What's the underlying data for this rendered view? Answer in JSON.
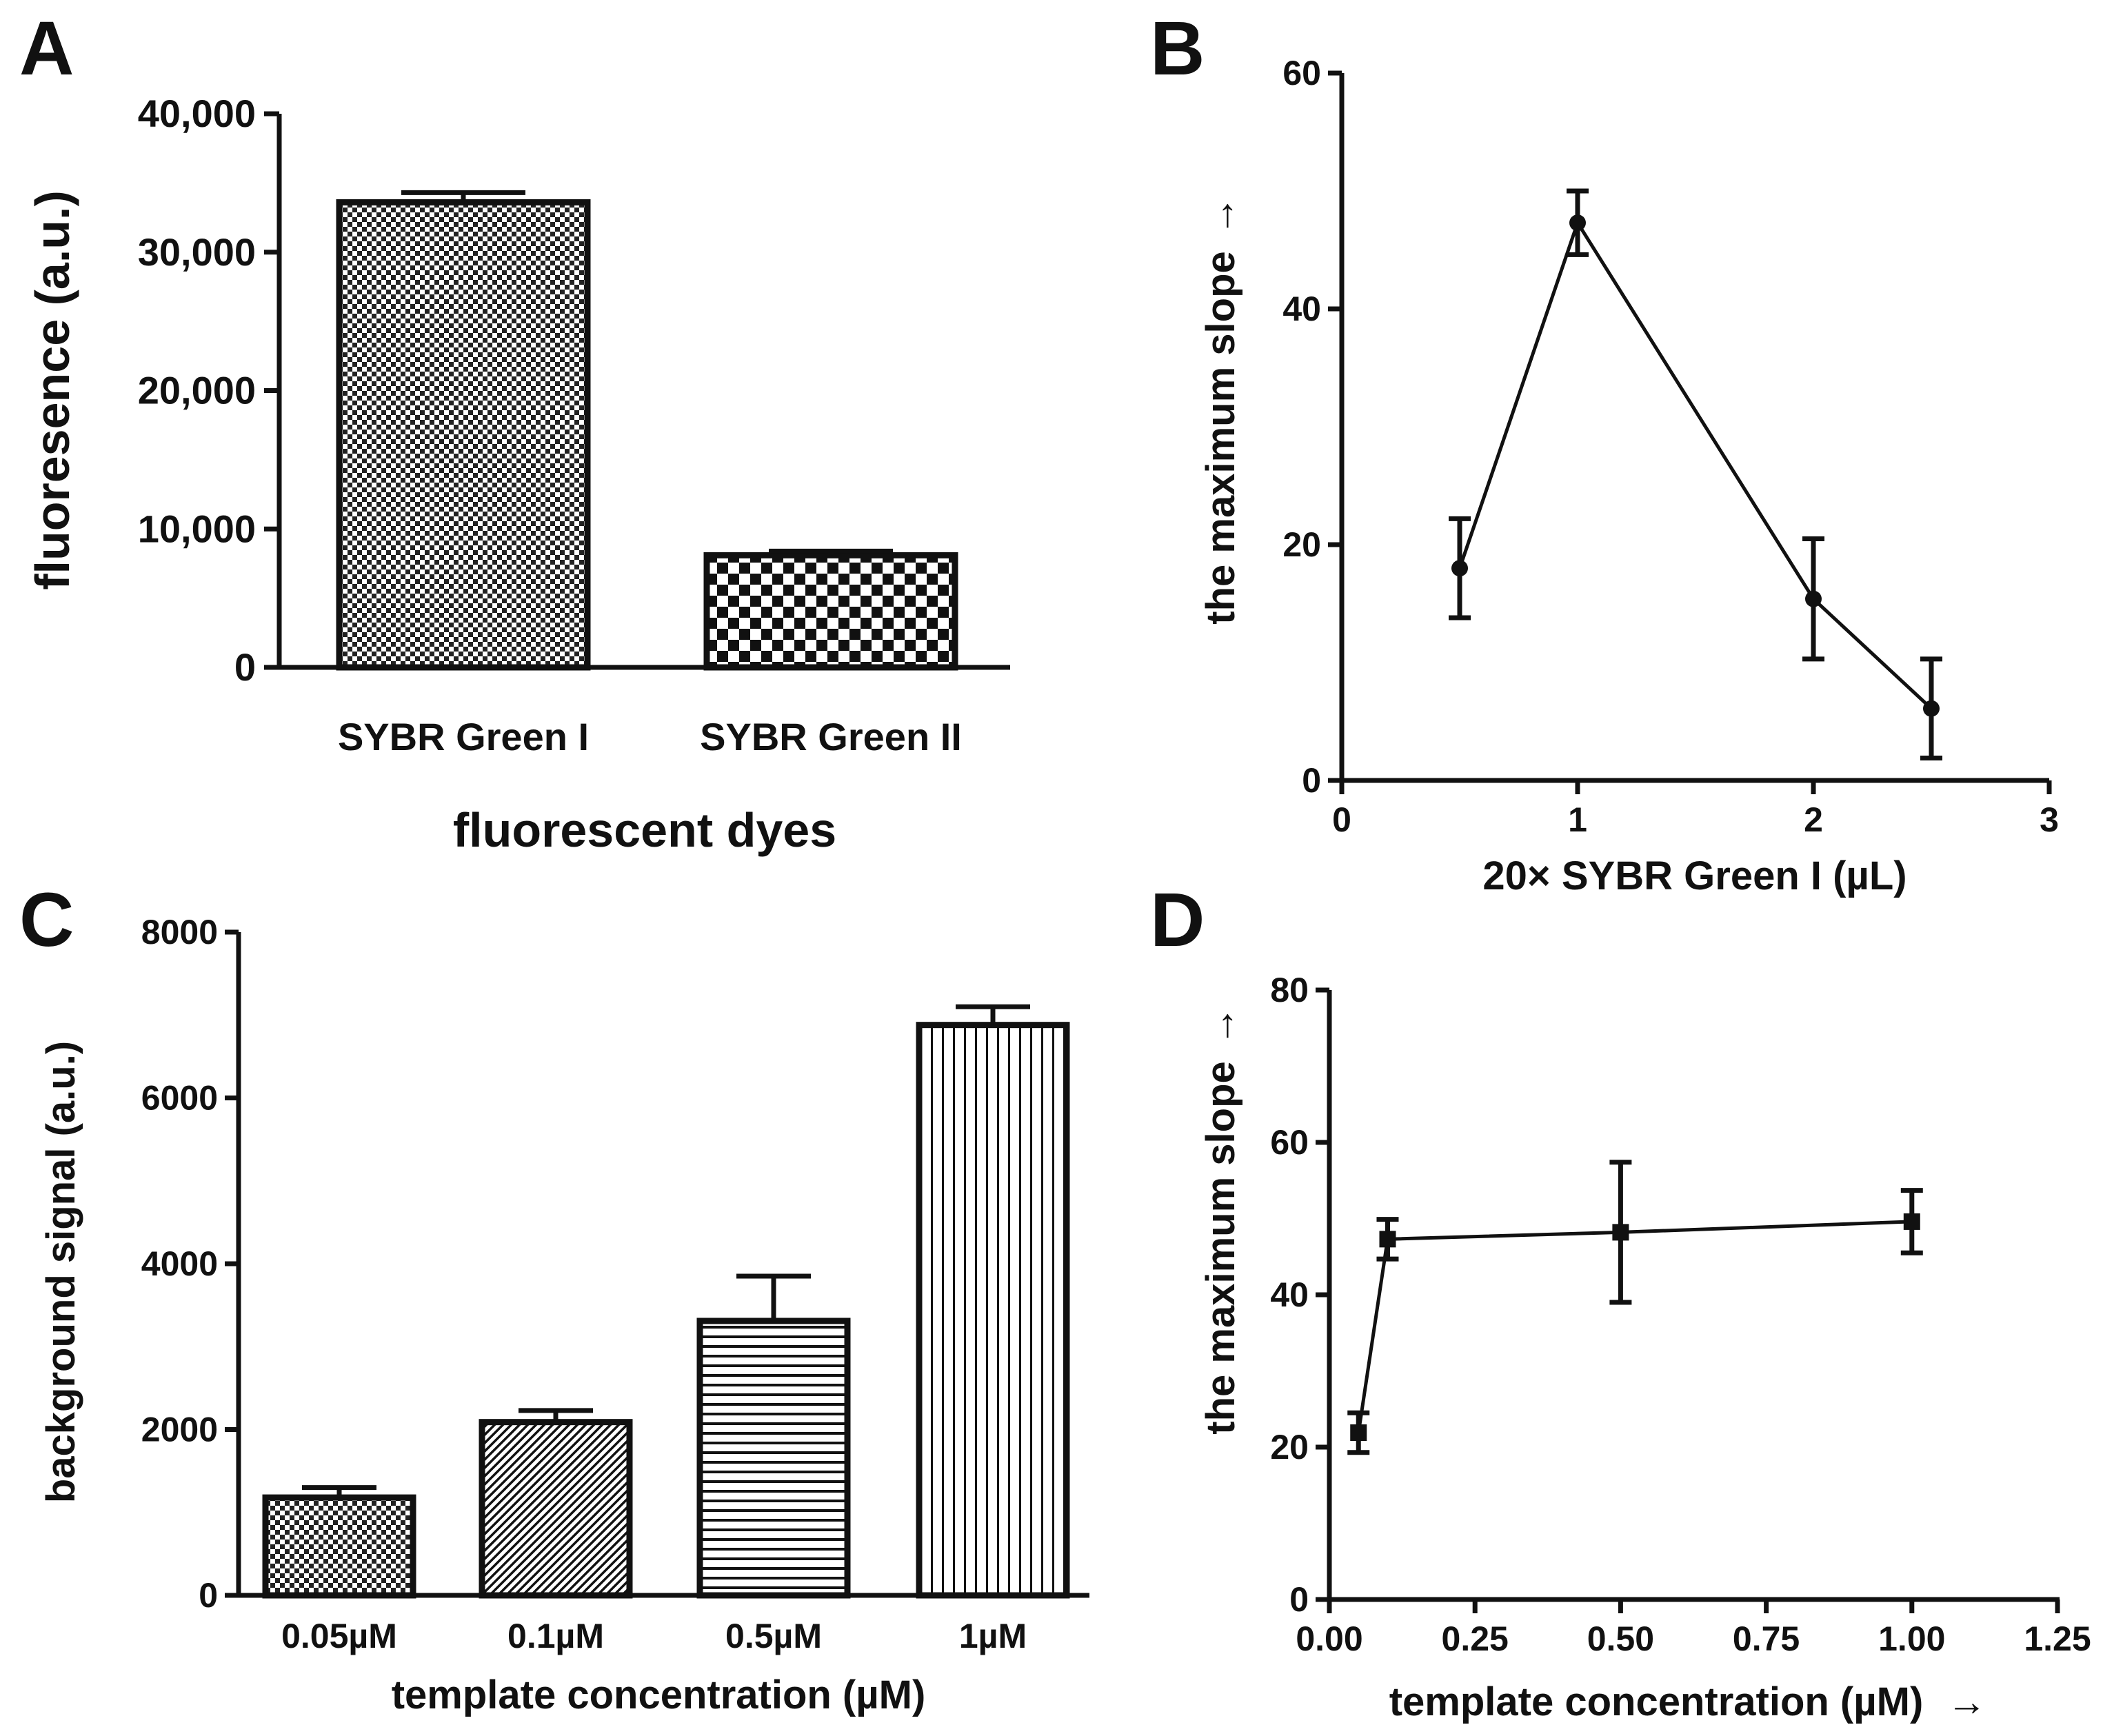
{
  "panels": [
    {
      "id": "A",
      "label": "A"
    },
    {
      "id": "B",
      "label": "B"
    },
    {
      "id": "C",
      "label": "C"
    },
    {
      "id": "D",
      "label": "D"
    }
  ],
  "chart_data": [
    {
      "panel": "A",
      "type": "bar",
      "title": "",
      "xlabel": "fluorescent dyes",
      "ylabel": "fluoresence  (a.u.)",
      "ylim": [
        0,
        40000
      ],
      "yticks": [
        0,
        10000,
        20000,
        30000,
        40000
      ],
      "ytick_labels": [
        "0",
        "10,000",
        "20,000",
        "30,000",
        "40,000"
      ],
      "categories": [
        "SYBR Green I",
        "SYBR Green II"
      ],
      "values": [
        33600,
        8100
      ],
      "errors": [
        700,
        300
      ],
      "patterns": [
        "fine-check",
        "coarse-check"
      ]
    },
    {
      "panel": "B",
      "type": "line",
      "title": "",
      "xlabel": "20× SYBR Green I (µL)",
      "ylabel": "the maximum slope",
      "ylabel_arrow": "→",
      "xlim": [
        0,
        3
      ],
      "ylim": [
        0,
        60
      ],
      "xticks": [
        0,
        1,
        2,
        3
      ],
      "xtick_labels": [
        "0",
        "1",
        "2",
        "3"
      ],
      "yticks": [
        0,
        20,
        40,
        60
      ],
      "ytick_labels": [
        "0",
        "20",
        "40",
        "60"
      ],
      "marker": "circle",
      "series": [
        {
          "name": "",
          "x": [
            0.5,
            1,
            2,
            2.5
          ],
          "y": [
            18,
            47.3,
            15.4,
            6.1
          ],
          "errors": [
            4.2,
            2.7,
            5.1,
            4.2
          ]
        }
      ]
    },
    {
      "panel": "C",
      "type": "bar",
      "title": "",
      "xlabel": "template concentration  (µM)",
      "ylabel": "background signal  (a.u.)",
      "ylim": [
        0,
        8000
      ],
      "yticks": [
        0,
        2000,
        4000,
        6000,
        8000
      ],
      "ytick_labels": [
        "0",
        "2000",
        "4000",
        "6000",
        "8000"
      ],
      "categories": [
        "0.05µM",
        "0.1µM",
        "0.5µM",
        "1µM"
      ],
      "values": [
        1180,
        2090,
        3310,
        6880
      ],
      "errors": [
        120,
        140,
        540,
        220
      ],
      "patterns": [
        "fine-check",
        "diagonal",
        "horizontal",
        "vertical"
      ]
    },
    {
      "panel": "D",
      "type": "line",
      "title": "",
      "xlabel": "template concentration  (µM)",
      "xlabel_arrow": "→",
      "ylabel": "the maximum slope",
      "ylabel_arrow": "→",
      "xlim": [
        0,
        1.25
      ],
      "ylim": [
        0,
        80
      ],
      "xticks": [
        0,
        0.25,
        0.5,
        0.75,
        1.0,
        1.25
      ],
      "xtick_labels": [
        "0.00",
        "0.25",
        "0.50",
        "0.75",
        "1.00",
        "1.25"
      ],
      "yticks": [
        0,
        20,
        40,
        60,
        80
      ],
      "ytick_labels": [
        "0",
        "20",
        "40",
        "60",
        "80"
      ],
      "marker": "square",
      "series": [
        {
          "name": "",
          "x": [
            0.05,
            0.1,
            0.5,
            1.0
          ],
          "y": [
            21.9,
            47.3,
            48.2,
            49.6
          ],
          "errors": [
            2.6,
            2.6,
            9.2,
            4.1
          ]
        }
      ]
    }
  ]
}
